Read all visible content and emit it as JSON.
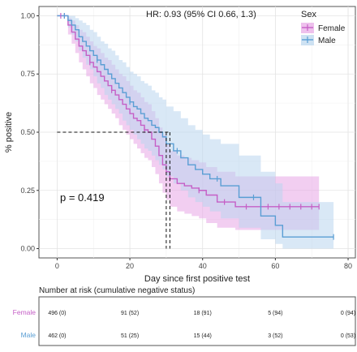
{
  "chart_data": {
    "type": "line",
    "subtype": "kaplan-meier",
    "xlabel": "Day since first positive test",
    "ylabel": "% positive",
    "xlim": [
      -5,
      82
    ],
    "ylim": [
      -0.04,
      1.04
    ],
    "x_ticks": [
      0,
      20,
      40,
      60,
      80
    ],
    "y_ticks": [
      0.0,
      0.25,
      0.5,
      0.75,
      1.0
    ],
    "y_tick_labels": [
      "0.00",
      "0.25",
      "0.50",
      "0.75",
      "1.00"
    ],
    "grid": true,
    "annotation": "HR: 0.93 (95% CI 0.66, 1.3)",
    "pvalue_label": "p = 0.419",
    "median_line": {
      "y": 0.5,
      "x": [
        30,
        31
      ]
    },
    "legend": {
      "title": "Sex",
      "position": "top-right"
    },
    "series": [
      {
        "name": "Female",
        "color": "#c55fc6",
        "band_color": "#e7a6e6",
        "step_x": [
          0,
          3,
          4,
          5,
          6,
          7,
          8,
          9,
          10,
          11,
          12,
          13,
          14,
          15,
          16,
          17,
          18,
          19,
          20,
          21,
          22,
          23,
          24,
          25,
          26,
          27,
          28,
          29,
          30,
          31,
          33,
          35,
          37,
          39,
          41,
          44,
          49,
          72
        ],
        "step_y": [
          1.0,
          0.96,
          0.93,
          0.9,
          0.87,
          0.85,
          0.83,
          0.8,
          0.78,
          0.76,
          0.74,
          0.72,
          0.7,
          0.68,
          0.66,
          0.64,
          0.62,
          0.6,
          0.58,
          0.56,
          0.55,
          0.53,
          0.51,
          0.5,
          0.47,
          0.44,
          0.4,
          0.36,
          0.33,
          0.3,
          0.28,
          0.27,
          0.26,
          0.25,
          0.23,
          0.2,
          0.18,
          0.18
        ],
        "upper": [
          1.0,
          0.99,
          0.98,
          0.96,
          0.94,
          0.93,
          0.91,
          0.89,
          0.87,
          0.86,
          0.84,
          0.82,
          0.81,
          0.79,
          0.77,
          0.75,
          0.74,
          0.72,
          0.7,
          0.68,
          0.67,
          0.65,
          0.63,
          0.62,
          0.59,
          0.56,
          0.52,
          0.49,
          0.45,
          0.42,
          0.4,
          0.39,
          0.38,
          0.37,
          0.35,
          0.33,
          0.31,
          0.31
        ],
        "lower": [
          1.0,
          0.92,
          0.88,
          0.84,
          0.8,
          0.77,
          0.74,
          0.71,
          0.69,
          0.66,
          0.64,
          0.62,
          0.6,
          0.58,
          0.56,
          0.53,
          0.51,
          0.49,
          0.47,
          0.45,
          0.43,
          0.41,
          0.39,
          0.38,
          0.35,
          0.32,
          0.28,
          0.24,
          0.21,
          0.18,
          0.16,
          0.15,
          0.14,
          0.13,
          0.11,
          0.09,
          0.08,
          0.08
        ],
        "censor_x": [
          1,
          2,
          9,
          15,
          24,
          31,
          39,
          46,
          52,
          58,
          61,
          64,
          67,
          70,
          72
        ]
      },
      {
        "name": "Male",
        "color": "#5a9ed4",
        "band_color": "#b9d6ee",
        "step_x": [
          0,
          3,
          4,
          5,
          6,
          7,
          8,
          9,
          10,
          11,
          12,
          13,
          14,
          15,
          16,
          17,
          18,
          19,
          20,
          21,
          22,
          23,
          24,
          25,
          26,
          27,
          28,
          29,
          30,
          32,
          34,
          36,
          38,
          40,
          42,
          45,
          50,
          56,
          60,
          62,
          76
        ],
        "step_y": [
          1.0,
          0.98,
          0.96,
          0.94,
          0.91,
          0.89,
          0.87,
          0.85,
          0.83,
          0.81,
          0.79,
          0.77,
          0.75,
          0.73,
          0.71,
          0.69,
          0.67,
          0.65,
          0.63,
          0.61,
          0.6,
          0.58,
          0.56,
          0.55,
          0.53,
          0.52,
          0.5,
          0.48,
          0.45,
          0.42,
          0.39,
          0.36,
          0.34,
          0.32,
          0.3,
          0.27,
          0.22,
          0.14,
          0.1,
          0.05,
          0.05
        ],
        "upper": [
          1.0,
          1.0,
          1.0,
          0.99,
          0.98,
          0.97,
          0.96,
          0.94,
          0.93,
          0.91,
          0.89,
          0.88,
          0.86,
          0.85,
          0.83,
          0.81,
          0.8,
          0.78,
          0.76,
          0.75,
          0.74,
          0.72,
          0.71,
          0.7,
          0.68,
          0.67,
          0.65,
          0.64,
          0.61,
          0.59,
          0.56,
          0.53,
          0.51,
          0.49,
          0.47,
          0.45,
          0.4,
          0.33,
          0.28,
          0.2,
          0.2
        ],
        "lower": [
          1.0,
          0.95,
          0.92,
          0.89,
          0.85,
          0.82,
          0.79,
          0.77,
          0.74,
          0.71,
          0.69,
          0.66,
          0.64,
          0.62,
          0.6,
          0.58,
          0.55,
          0.53,
          0.51,
          0.49,
          0.47,
          0.45,
          0.43,
          0.42,
          0.4,
          0.38,
          0.36,
          0.34,
          0.31,
          0.28,
          0.25,
          0.22,
          0.2,
          0.18,
          0.16,
          0.13,
          0.09,
          0.04,
          0.02,
          0.0,
          0.0
        ],
        "censor_x": [
          2,
          11,
          20,
          33,
          44,
          54,
          76
        ]
      }
    ]
  },
  "risk_table": {
    "title": "Number at risk (cumulative negative status)",
    "times": [
      0,
      20,
      40,
      60,
      80
    ],
    "rows": [
      {
        "label": "Female",
        "color": "#c55fc6",
        "cells": [
          "496 (0)",
          "91 (52)",
          "18 (91)",
          "5 (94)",
          "0 (94)"
        ]
      },
      {
        "label": "Male",
        "color": "#5a9ed4",
        "cells": [
          "462 (0)",
          "51 (25)",
          "15 (44)",
          "3 (52)",
          "0 (53)"
        ]
      }
    ]
  }
}
